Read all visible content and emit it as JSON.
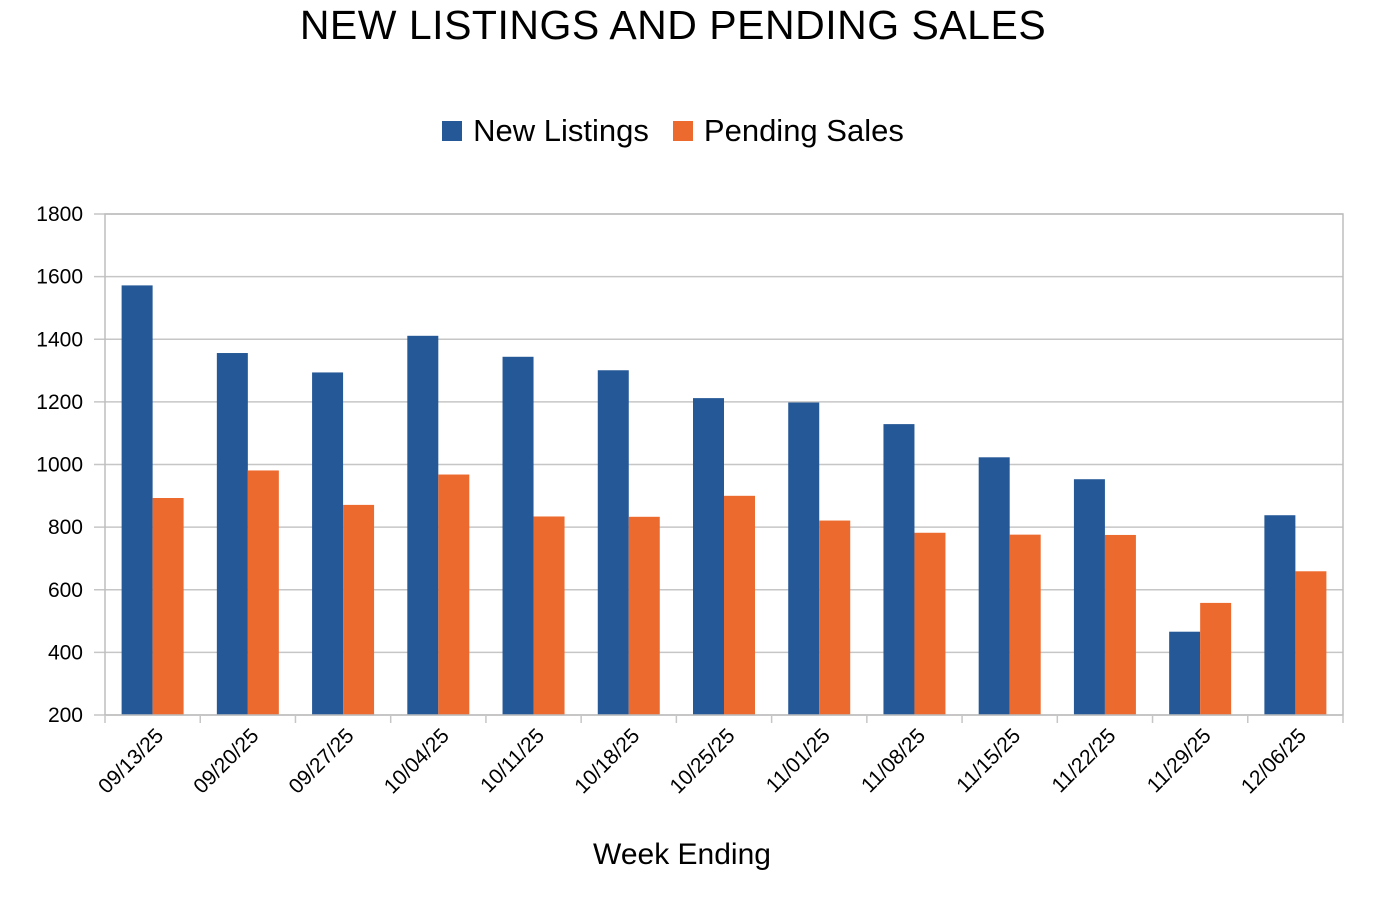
{
  "chart_data": {
    "type": "bar",
    "title": "NEW LISTINGS AND PENDING SALES",
    "xlabel": "Week Ending",
    "ylabel": "",
    "ylim": [
      200,
      1800
    ],
    "yticks": [
      200,
      400,
      600,
      800,
      1000,
      1200,
      1400,
      1600,
      1800
    ],
    "grid": true,
    "legend_position": "top",
    "categories": [
      "09/13/25",
      "09/20/25",
      "09/27/25",
      "10/04/25",
      "10/11/25",
      "10/18/25",
      "10/25/25",
      "11/01/25",
      "11/08/25",
      "11/15/25",
      "11/22/25",
      "11/29/25",
      "12/06/25"
    ],
    "series": [
      {
        "name": "New Listings",
        "color": "#255896",
        "values": [
          1572,
          1356,
          1294,
          1411,
          1344,
          1301,
          1212,
          1198,
          1129,
          1023,
          953,
          466,
          838
        ]
      },
      {
        "name": "Pending Sales",
        "color": "#ED6A2F",
        "values": [
          893,
          981,
          871,
          968,
          834,
          833,
          900,
          821,
          782,
          776,
          775,
          558,
          659
        ]
      }
    ]
  }
}
